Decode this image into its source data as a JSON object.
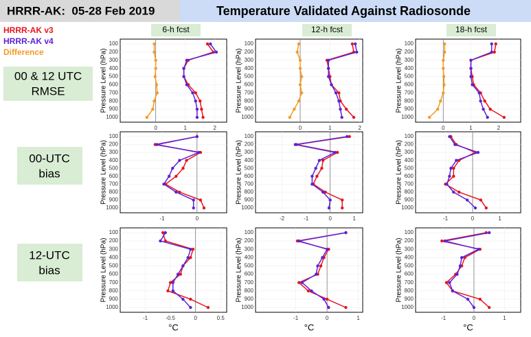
{
  "header": {
    "left": "HRRR-AK:  05-28 Feb 2019",
    "title": "Temperature Validated Against Radiosonde"
  },
  "legend": [
    {
      "name": "HRRR-AK v3",
      "color": "#e8141c"
    },
    {
      "name": "HRRR-AK v4",
      "color": "#5b22d8"
    },
    {
      "name": "Difference",
      "color": "#f59a23"
    }
  ],
  "row_labels": [
    [
      "00 & 12 UTC",
      "RMSE"
    ],
    [
      "00-UTC",
      "bias"
    ],
    [
      "12-UTC",
      "bias"
    ]
  ],
  "col_labels": [
    "6-h fcst",
    "12-h fcst",
    "18-h fcst"
  ],
  "x_label": "°C",
  "y_label": "Pressure Level (hPa)",
  "chart_data": [
    {
      "type": "line",
      "categories": [
        100,
        200,
        300,
        400,
        500,
        600,
        700,
        800,
        900,
        1000
      ],
      "xlim": [
        -1.2,
        2.4
      ],
      "xticks": [
        0,
        1,
        2
      ],
      "grid": true,
      "series": [
        {
          "values": [
            1.75,
            1.95,
            1.1,
            0.95,
            0.95,
            1.1,
            1.35,
            1.5,
            1.55,
            1.6
          ]
        },
        {
          "values": [
            1.85,
            2.05,
            1.05,
            0.95,
            0.95,
            1.05,
            1.25,
            1.35,
            1.4,
            1.4
          ]
        },
        {
          "values": [
            -0.05,
            -0.05,
            0,
            0,
            -0.02,
            0.03,
            0.05,
            -0.05,
            -0.1,
            -0.3
          ]
        }
      ]
    },
    {
      "type": "line",
      "categories": [
        100,
        200,
        300,
        400,
        500,
        600,
        700,
        800,
        900,
        1000
      ],
      "xlim": [
        -1.5,
        2.1
      ],
      "xticks": [
        0,
        1,
        2
      ],
      "grid": true,
      "series": [
        {
          "values": [
            1.75,
            1.8,
            0.9,
            0.95,
            1.0,
            1.05,
            1.3,
            1.35,
            1.55,
            1.8
          ]
        },
        {
          "values": [
            1.85,
            1.9,
            0.95,
            0.95,
            0.95,
            1.05,
            1.2,
            1.3,
            1.35,
            1.4
          ]
        },
        {
          "values": [
            -0.05,
            -0.1,
            0,
            0,
            0.05,
            0,
            0.05,
            -0.05,
            -0.2,
            -0.35
          ]
        }
      ]
    },
    {
      "type": "line",
      "categories": [
        100,
        200,
        300,
        400,
        500,
        600,
        700,
        800,
        900,
        1000
      ],
      "xlim": [
        -1,
        2.8
      ],
      "xticks": [
        0,
        1,
        2
      ],
      "grid": true,
      "series": [
        {
          "values": [
            1.9,
            1.85,
            1.0,
            1.0,
            1.05,
            1.1,
            1.35,
            1.5,
            1.7,
            2.2
          ]
        },
        {
          "values": [
            1.75,
            1.75,
            1.0,
            1.0,
            1.0,
            1.05,
            1.3,
            1.35,
            1.45,
            1.6
          ]
        },
        {
          "values": [
            0.05,
            0.05,
            0,
            0,
            0.02,
            0.03,
            0,
            -0.1,
            -0.2,
            -0.5
          ]
        }
      ]
    },
    {
      "type": "line",
      "categories": [
        100,
        200,
        300,
        400,
        500,
        600,
        700,
        800,
        900,
        1000
      ],
      "xlim": [
        -2.2,
        0.85
      ],
      "xticks": [
        -1,
        0
      ],
      "grid": true,
      "series": [
        {
          "values": [
            0.0,
            -1.2,
            0.1,
            -0.3,
            -0.4,
            -0.6,
            -0.9,
            -0.5,
            0.1,
            0.2
          ]
        },
        {
          "values": [
            0.0,
            -1.15,
            0.05,
            -0.5,
            -0.7,
            -0.8,
            -0.95,
            -0.6,
            -0.1,
            -0.1
          ]
        }
      ]
    },
    {
      "type": "line",
      "categories": [
        100,
        200,
        300,
        400,
        500,
        600,
        700,
        800,
        900,
        1000
      ],
      "xlim": [
        -3.1,
        1.35
      ],
      "xticks": [
        -2,
        -1,
        0,
        1
      ],
      "grid": true,
      "series": [
        {
          "values": [
            0.8,
            -1.4,
            0.3,
            -0.3,
            -0.35,
            -0.55,
            -0.7,
            -0.2,
            0.5,
            0.5
          ]
        },
        {
          "values": [
            0.7,
            -1.45,
            0.2,
            -0.45,
            -0.6,
            -0.75,
            -0.75,
            -0.3,
            0.0,
            -0.05
          ]
        }
      ]
    },
    {
      "type": "line",
      "categories": [
        100,
        200,
        300,
        400,
        500,
        600,
        700,
        800,
        900,
        1000
      ],
      "xlim": [
        -2.1,
        1.77
      ],
      "xticks": [
        -1,
        0,
        1
      ],
      "grid": true,
      "series": [
        {
          "values": [
            -0.8,
            -0.6,
            0.1,
            -0.5,
            -0.7,
            -0.7,
            -1.0,
            -0.5,
            0.3,
            0.5
          ]
        },
        {
          "values": [
            -0.85,
            -0.65,
            0.2,
            -0.6,
            -0.8,
            -0.85,
            -0.95,
            -0.7,
            -0.2,
            0.1
          ]
        }
      ]
    },
    {
      "type": "line",
      "categories": [
        100,
        200,
        300,
        400,
        500,
        600,
        700,
        800,
        900,
        1000
      ],
      "xlim": [
        -1.5,
        0.62
      ],
      "xticks": [
        -1,
        -0.5,
        0,
        0.5
      ],
      "grid": true,
      "series": [
        {
          "values": [
            -0.65,
            -0.6,
            -0.05,
            -0.1,
            -0.25,
            -0.3,
            -0.5,
            -0.55,
            -0.1,
            0.25
          ]
        },
        {
          "values": [
            -0.6,
            -0.7,
            -0.1,
            -0.15,
            -0.25,
            -0.35,
            -0.45,
            -0.45,
            -0.25,
            -0.1
          ]
        }
      ]
    },
    {
      "type": "line",
      "categories": [
        100,
        200,
        300,
        400,
        500,
        600,
        700,
        800,
        900,
        1000
      ],
      "xlim": [
        -2.29,
        1.14
      ],
      "xticks": [
        -1,
        0,
        1
      ],
      "grid": true,
      "series": [
        {
          "values": [
            0.6,
            -0.95,
            0.05,
            -0.1,
            -0.2,
            -0.3,
            -0.9,
            -0.6,
            0.0,
            0.6
          ]
        },
        {
          "values": [
            0.6,
            -0.9,
            0.0,
            -0.15,
            -0.3,
            -0.35,
            -0.8,
            -0.5,
            -0.1,
            0.05
          ]
        }
      ]
    },
    {
      "type": "line",
      "categories": [
        100,
        200,
        300,
        400,
        500,
        600,
        700,
        800,
        900,
        1000
      ],
      "xlim": [
        -1.91,
        1.53
      ],
      "xticks": [
        -1,
        0,
        1
      ],
      "grid": true,
      "series": [
        {
          "values": [
            0.4,
            -1.05,
            0.2,
            -0.3,
            -0.4,
            -0.6,
            -0.9,
            -0.7,
            0.2,
            0.5
          ]
        },
        {
          "values": [
            0.5,
            -0.95,
            0.15,
            -0.4,
            -0.45,
            -0.55,
            -0.8,
            -0.7,
            -0.2,
            0.0
          ]
        }
      ]
    }
  ]
}
